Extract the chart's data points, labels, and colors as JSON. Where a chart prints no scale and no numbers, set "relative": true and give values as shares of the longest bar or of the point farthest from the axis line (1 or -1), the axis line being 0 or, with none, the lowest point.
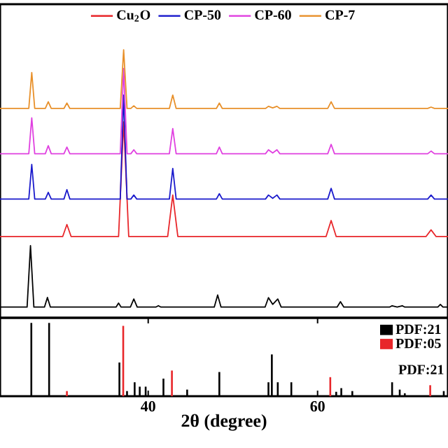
{
  "chart_data": [
    {
      "type": "line",
      "relative": true,
      "xlim": [
        22.5,
        75.4
      ],
      "legend": "top",
      "marker": "none",
      "line_style": "solid",
      "grid": false,
      "series": [
        {
          "name": "Cu$_{2}$O",
          "color": "#e8262a",
          "x": [
            22.5,
            29.9,
            30.4,
            30.9,
            36.5,
            37.1,
            37.7,
            42.3,
            42.9,
            43.5,
            61.0,
            61.6,
            62.2,
            72.8,
            73.4,
            74.0,
            75.4
          ],
          "values": [
            0.303,
            0.303,
            0.348,
            0.303,
            0.303,
            0.731,
            0.303,
            0.303,
            0.458,
            0.303,
            0.303,
            0.363,
            0.303,
            0.303,
            0.328,
            0.303,
            0.303
          ]
        },
        {
          "color": "#000000",
          "x": [
            22.5,
            25.7,
            26.1,
            26.5,
            27.75,
            28.1,
            28.45,
            36.2,
            36.5,
            36.8,
            37.9,
            38.3,
            38.7,
            40.9,
            41.2,
            41.5,
            47.8,
            48.2,
            48.6,
            53.8,
            54.2,
            54.7,
            55.3,
            55.7,
            62.3,
            62.7,
            63.1,
            68.5,
            68.8,
            69.4,
            70.0,
            70.3,
            74.2,
            74.5,
            74.8,
            75.4
          ],
          "values": [
            0.04,
            0.04,
            0.269,
            0.04,
            0.04,
            0.076,
            0.04,
            0.04,
            0.055,
            0.04,
            0.04,
            0.07,
            0.04,
            0.04,
            0.045,
            0.04,
            0.04,
            0.085,
            0.04,
            0.04,
            0.075,
            0.05,
            0.07,
            0.04,
            0.04,
            0.06,
            0.04,
            0.04,
            0.045,
            0.04,
            0.045,
            0.04,
            0.04,
            0.05,
            0.04,
            0.04
          ]
        },
        {
          "name": "CP-50",
          "color": "#1a1acc",
          "x": [
            22.5,
            25.9,
            26.25,
            26.6,
            27.85,
            28.2,
            28.55,
            30.05,
            30.4,
            30.75,
            36.7,
            37.1,
            37.5,
            37.95,
            38.3,
            38.65,
            42.5,
            42.9,
            43.3,
            48.05,
            48.4,
            48.75,
            53.85,
            54.2,
            54.7,
            55.2,
            55.55,
            61.2,
            61.6,
            62.0,
            73.0,
            73.4,
            73.8,
            75.4
          ],
          "values": [
            0.443,
            0.443,
            0.572,
            0.443,
            0.443,
            0.468,
            0.443,
            0.443,
            0.478,
            0.443,
            0.443,
            0.831,
            0.443,
            0.443,
            0.458,
            0.443,
            0.443,
            0.557,
            0.443,
            0.443,
            0.463,
            0.443,
            0.443,
            0.458,
            0.446,
            0.458,
            0.443,
            0.443,
            0.483,
            0.443,
            0.443,
            0.458,
            0.443,
            0.443
          ]
        },
        {
          "name": "CP-60",
          "color": "#e040e0",
          "x": [
            22.5,
            25.9,
            26.25,
            26.6,
            27.85,
            28.2,
            28.55,
            30.05,
            30.4,
            30.75,
            36.7,
            37.1,
            37.5,
            37.95,
            38.3,
            38.65,
            42.5,
            42.9,
            43.3,
            48.05,
            48.4,
            48.75,
            53.85,
            54.2,
            54.7,
            55.2,
            55.55,
            61.2,
            61.6,
            62.0,
            73.0,
            73.4,
            73.8,
            75.4
          ],
          "values": [
            0.612,
            0.612,
            0.746,
            0.612,
            0.612,
            0.642,
            0.612,
            0.612,
            0.637,
            0.612,
            0.612,
            0.93,
            0.612,
            0.612,
            0.627,
            0.612,
            0.612,
            0.706,
            0.612,
            0.612,
            0.637,
            0.612,
            0.612,
            0.627,
            0.615,
            0.627,
            0.612,
            0.612,
            0.647,
            0.612,
            0.612,
            0.622,
            0.612,
            0.612
          ]
        },
        {
          "name": "CP-7",
          "color": "#e8902a",
          "x": [
            22.5,
            25.9,
            26.25,
            26.6,
            27.85,
            28.2,
            28.55,
            30.05,
            30.4,
            30.75,
            36.7,
            37.1,
            37.5,
            37.95,
            38.3,
            38.65,
            42.5,
            42.9,
            43.3,
            48.05,
            48.4,
            48.75,
            53.85,
            54.2,
            54.7,
            55.2,
            55.55,
            61.2,
            61.6,
            62.0,
            73.0,
            73.4,
            73.8,
            75.4
          ],
          "values": [
            0.781,
            0.781,
            0.915,
            0.781,
            0.781,
            0.806,
            0.781,
            0.781,
            0.801,
            0.781,
            0.781,
            1.0,
            0.781,
            0.781,
            0.791,
            0.781,
            0.781,
            0.831,
            0.781,
            0.781,
            0.801,
            0.781,
            0.781,
            0.789,
            0.783,
            0.789,
            0.781,
            0.781,
            0.806,
            0.781,
            0.781,
            0.786,
            0.781,
            0.781
          ]
        }
      ]
    },
    {
      "type": "bar",
      "relative": true,
      "xlim": [
        22.5,
        75.4
      ],
      "xticks": [
        40,
        60
      ],
      "xlabel": "2θ (degree)",
      "legend": "top right",
      "grid": false,
      "annotations": [
        "PDF:21"
      ],
      "series": [
        {
          "name": "PDF:21",
          "color": "#000000",
          "x": [
            26.2,
            28.3,
            36.6,
            37.5,
            38.4,
            39.0,
            39.7,
            41.8,
            44.6,
            48.4,
            54.2,
            54.6,
            55.3,
            56.9,
            62.2,
            62.8,
            64.1,
            65.5,
            68.8,
            69.7,
            70.3,
            74.9
          ],
          "values": [
            1,
            1,
            0.46,
            0.07,
            0.19,
            0.13,
            0.13,
            0.24,
            0.09,
            0.33,
            0.19,
            0.57,
            0.19,
            0.19,
            0.06,
            0.11,
            0.07,
            null,
            0.19,
            0.09,
            0.04,
            0.07
          ]
        },
        {
          "name": "PDF:05",
          "color": "#e8262a",
          "x": [
            30.4,
            37.05,
            42.8,
            61.5,
            73.3
          ],
          "values": [
            0.07,
            0.96,
            0.35,
            0.26,
            0.15
          ]
        }
      ]
    }
  ]
}
